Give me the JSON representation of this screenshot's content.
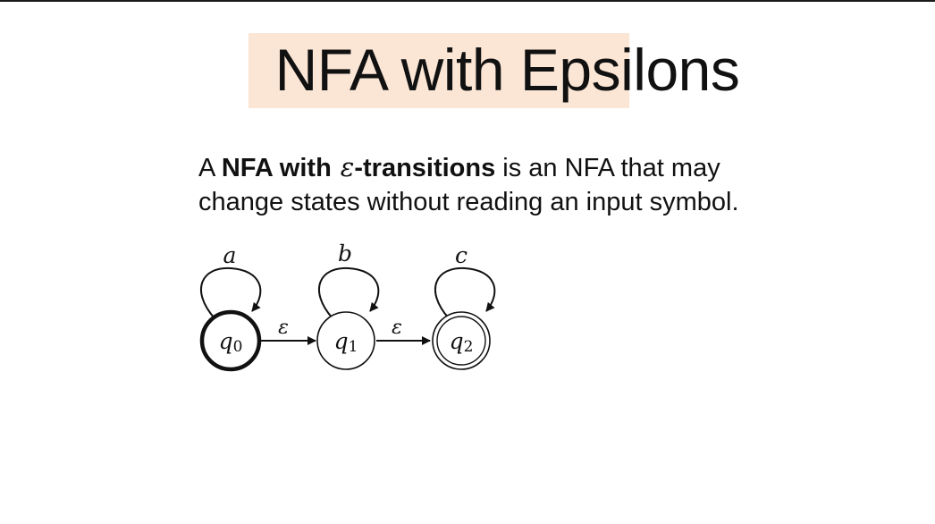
{
  "slide": {
    "title": "NFA with Epsilons",
    "colors": {
      "highlight": "#fbe6d6",
      "text": "#111111"
    }
  },
  "definition": {
    "prefix": "A ",
    "term_bold": "NFA with",
    "epsilon": "ε",
    "term_bold_suffix": "-transitions",
    "rest_line1": " is an NFA that may",
    "line2": "change states without reading an input symbol."
  },
  "automaton": {
    "states": [
      {
        "name": "q",
        "subscript": "0",
        "kind": "initial",
        "self_loop_label": "a"
      },
      {
        "name": "q",
        "subscript": "1",
        "kind": "normal",
        "self_loop_label": "b"
      },
      {
        "name": "q",
        "subscript": "2",
        "kind": "accepting",
        "self_loop_label": "c"
      }
    ],
    "transitions": [
      {
        "from": "q0",
        "to": "q1",
        "label": "ε"
      },
      {
        "from": "q1",
        "to": "q2",
        "label": "ε"
      }
    ]
  }
}
